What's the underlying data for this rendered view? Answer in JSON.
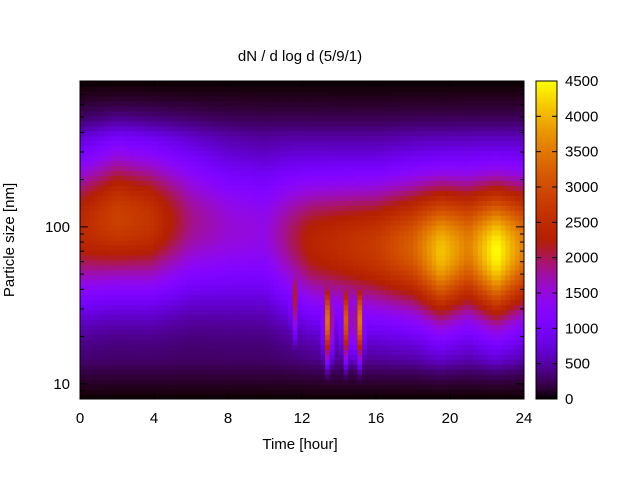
{
  "chart_data": {
    "type": "heatmap",
    "title": "dN / d log d (5/9/1)",
    "xlabel": "Time [hour]",
    "ylabel": "Particle size [nm]",
    "xlim": [
      0,
      24
    ],
    "x_ticks": [
      0,
      4,
      8,
      12,
      16,
      20,
      24
    ],
    "x_tick_labels": [
      "0",
      "4",
      "8",
      "12",
      "16",
      "20",
      "24"
    ],
    "y_scale": "log",
    "ylim": [
      8,
      850
    ],
    "y_tick_labels": [
      {
        "value": 10,
        "label": "10"
      },
      {
        "value": 100,
        "label": "100"
      }
    ],
    "colorbar": {
      "range": [
        0,
        4500
      ],
      "ticks": [
        0,
        500,
        1000,
        1500,
        2000,
        2500,
        3000,
        3500,
        4000,
        4500
      ],
      "tick_labels": [
        "0",
        "500",
        "1000",
        "1500",
        "2000",
        "2500",
        "3000",
        "3500",
        "4000",
        "4500"
      ],
      "palette": "black-purple-red-orange-yellow"
    },
    "events": [
      {
        "time_hour": 11.6,
        "peak_size_nm": 35,
        "value": 1900
      },
      {
        "time_hour": 13.4,
        "peak_size_nm": 25,
        "value": 3300
      },
      {
        "time_hour": 14.4,
        "peak_size_nm": 25,
        "value": 3000
      },
      {
        "time_hour": 15.1,
        "peak_size_nm": 25,
        "value": 3300
      }
    ],
    "profile_points": [
      {
        "time_hour": 0,
        "peak_size_nm": 100,
        "peak_value": 2200
      },
      {
        "time_hour": 2,
        "peak_size_nm": 115,
        "peak_value": 2600
      },
      {
        "time_hour": 3.8,
        "peak_size_nm": 110,
        "peak_value": 2400
      },
      {
        "time_hour": 6,
        "peak_size_nm": 110,
        "peak_value": 1600
      },
      {
        "time_hour": 8,
        "peak_size_nm": 100,
        "peak_value": 1300
      },
      {
        "time_hour": 10,
        "peak_size_nm": 95,
        "peak_value": 1200
      },
      {
        "time_hour": 12.5,
        "peak_size_nm": 80,
        "peak_value": 2100
      },
      {
        "time_hour": 16,
        "peak_size_nm": 75,
        "peak_value": 2500
      },
      {
        "time_hour": 18,
        "peak_size_nm": 75,
        "peak_value": 3000
      },
      {
        "time_hour": 19.5,
        "peak_size_nm": 70,
        "peak_value": 3900
      },
      {
        "time_hour": 21,
        "peak_size_nm": 75,
        "peak_value": 3300
      },
      {
        "time_hour": 22.5,
        "peak_size_nm": 70,
        "peak_value": 4300
      },
      {
        "time_hour": 24,
        "peak_size_nm": 75,
        "peak_value": 3300
      }
    ]
  }
}
